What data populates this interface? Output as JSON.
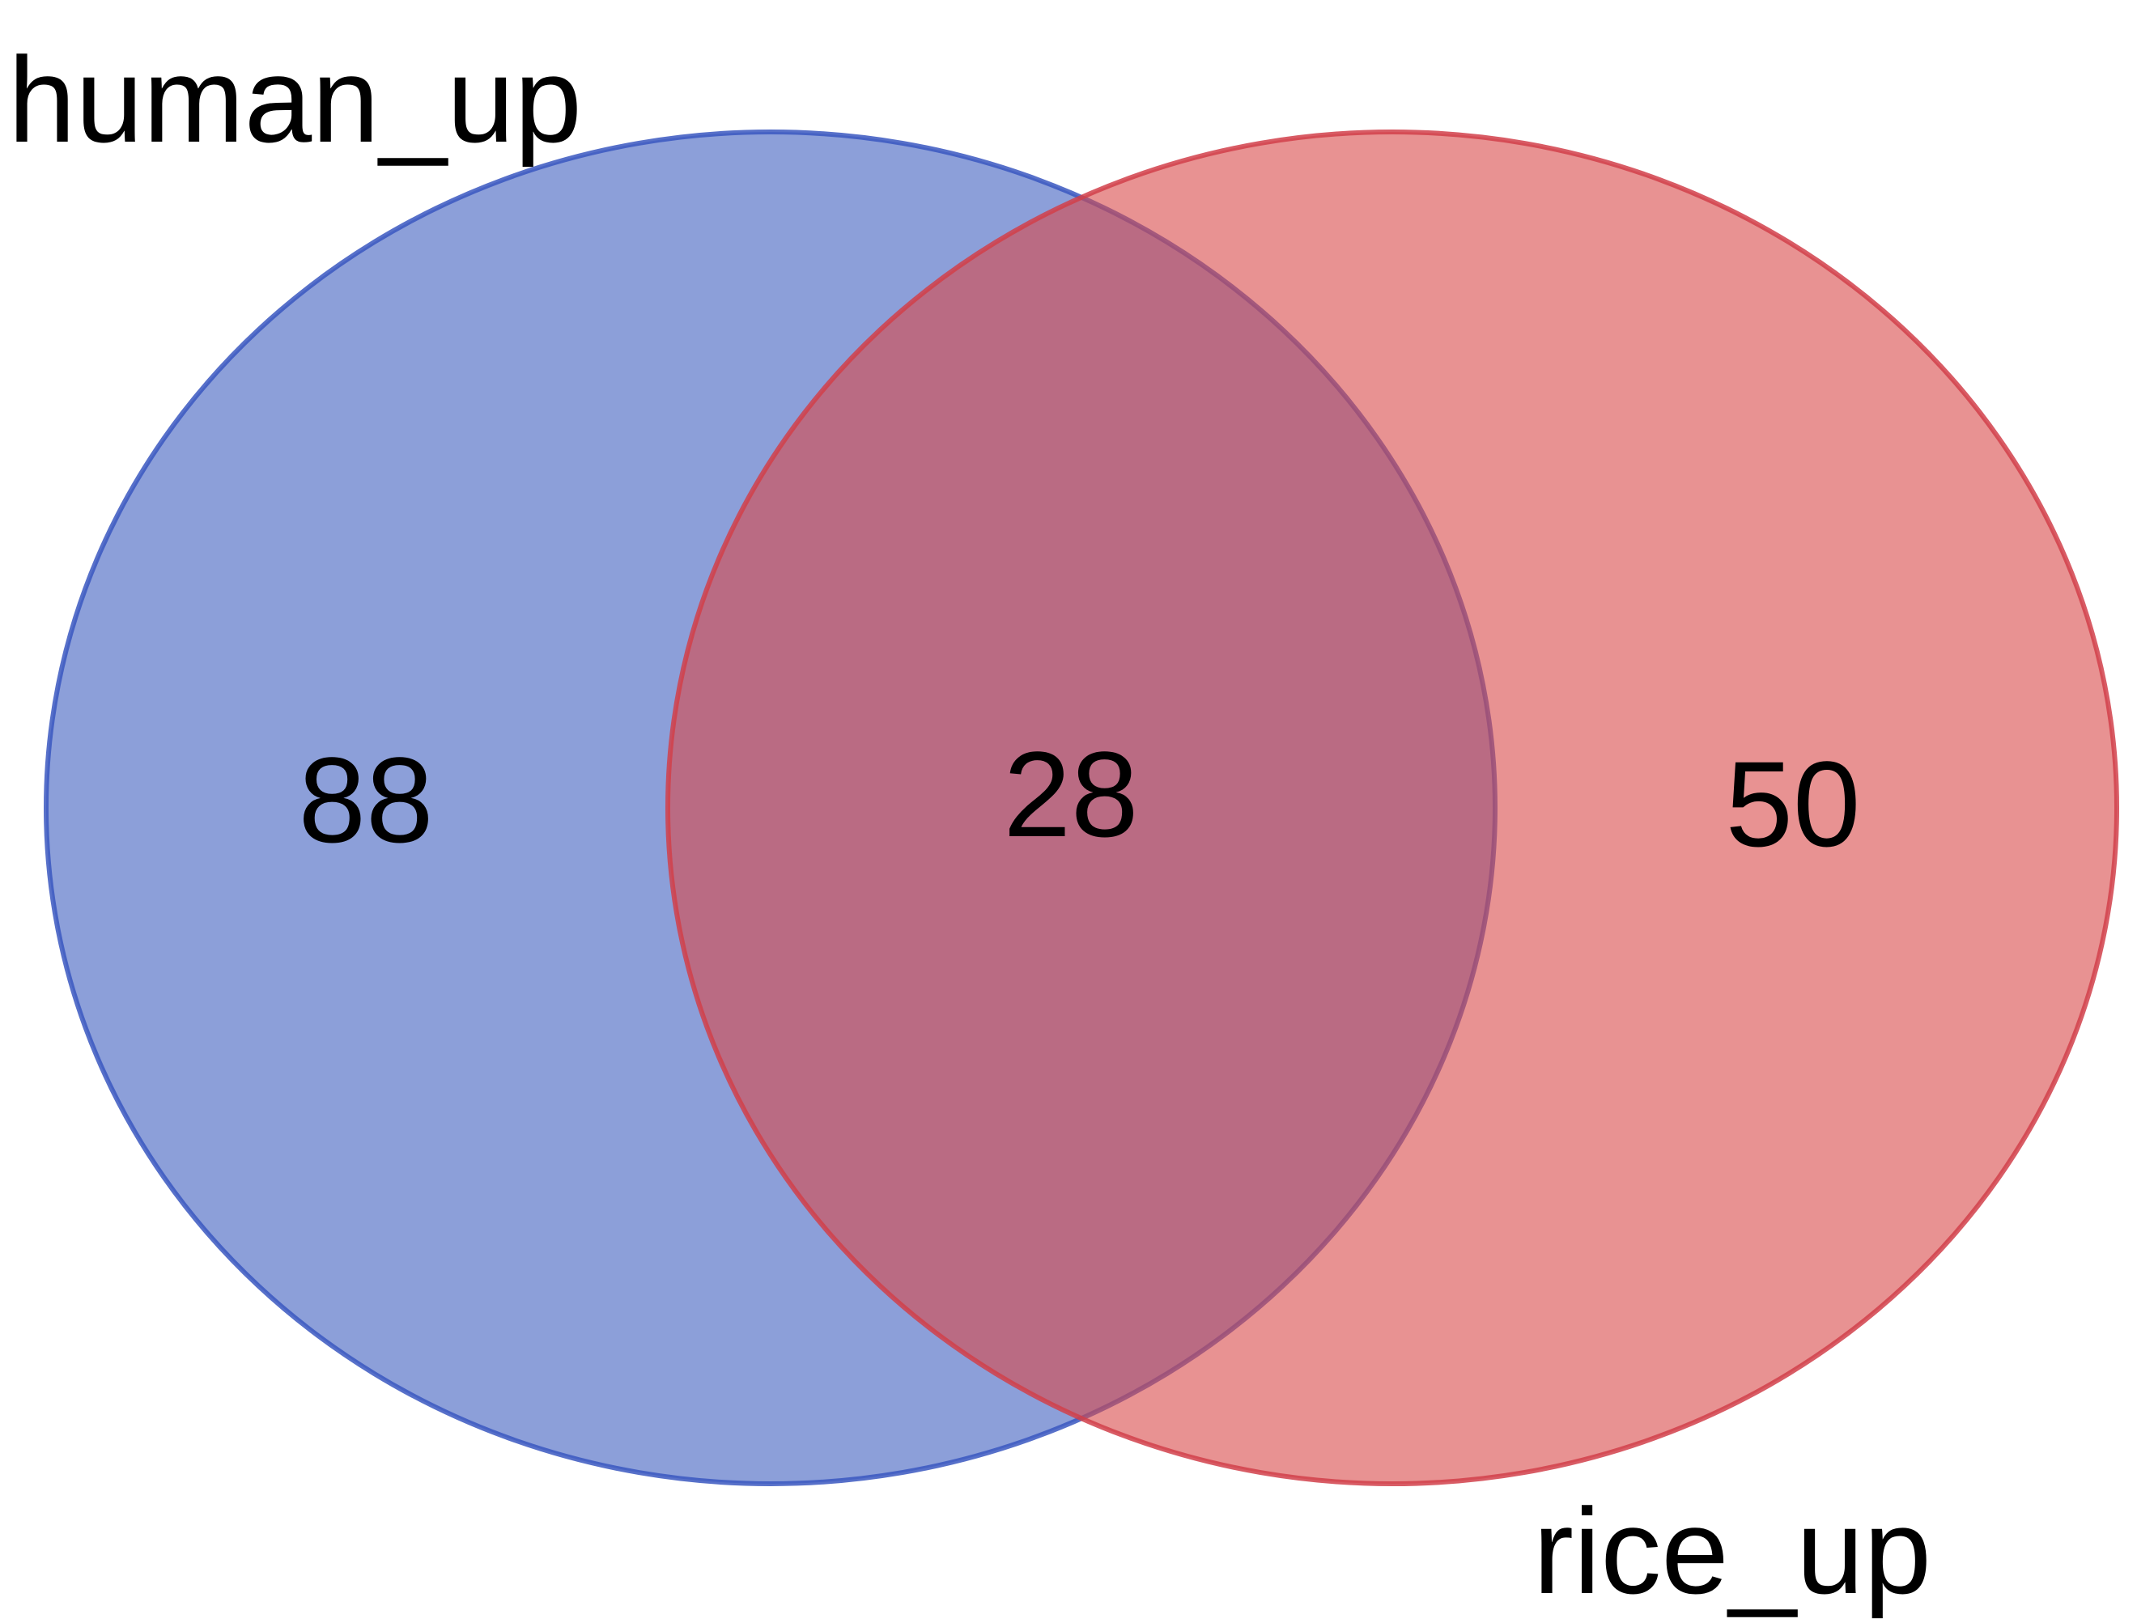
{
  "diagram": {
    "type": "venn-2",
    "sets": [
      {
        "name": "human_up",
        "only_count": "88",
        "fill": "#3f5fbf",
        "stroke": "#3a57c0",
        "fill_opacity": 0.6
      },
      {
        "name": "rice_up",
        "only_count": "50",
        "fill": "#d84a4a",
        "stroke": "#d1404a",
        "fill_opacity": 0.6
      }
    ],
    "intersection": {
      "count": "28"
    }
  }
}
